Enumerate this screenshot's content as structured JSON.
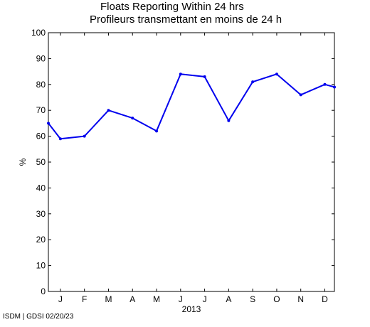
{
  "title_line1": "Floats Reporting Within 24 hrs",
  "title_line2": "Profileurs transmettant en moins de 24 h",
  "footer": "ISDM | GDSI 02/20/23",
  "chart_data": {
    "type": "line",
    "title": "Floats Reporting Within 24 hrs / Profileurs transmettant en moins de 24 h",
    "xlabel": "2013",
    "ylabel": "%",
    "ylim": [
      0,
      100
    ],
    "yticks": [
      0,
      10,
      20,
      30,
      40,
      50,
      60,
      70,
      80,
      90,
      100
    ],
    "xlim": [
      0.5,
      12.4
    ],
    "month_labels": [
      "J",
      "F",
      "M",
      "A",
      "M",
      "J",
      "J",
      "A",
      "S",
      "O",
      "N",
      "D"
    ],
    "grid": false,
    "line_color": "#0000ee",
    "series": [
      {
        "x": [
          0.5,
          1,
          2,
          3,
          4,
          5,
          6,
          7,
          8,
          9,
          10,
          11,
          12,
          12.4
        ],
        "values": [
          65,
          59,
          60,
          70,
          67,
          62,
          84,
          83,
          66,
          81,
          84,
          76,
          80,
          79
        ]
      }
    ]
  }
}
